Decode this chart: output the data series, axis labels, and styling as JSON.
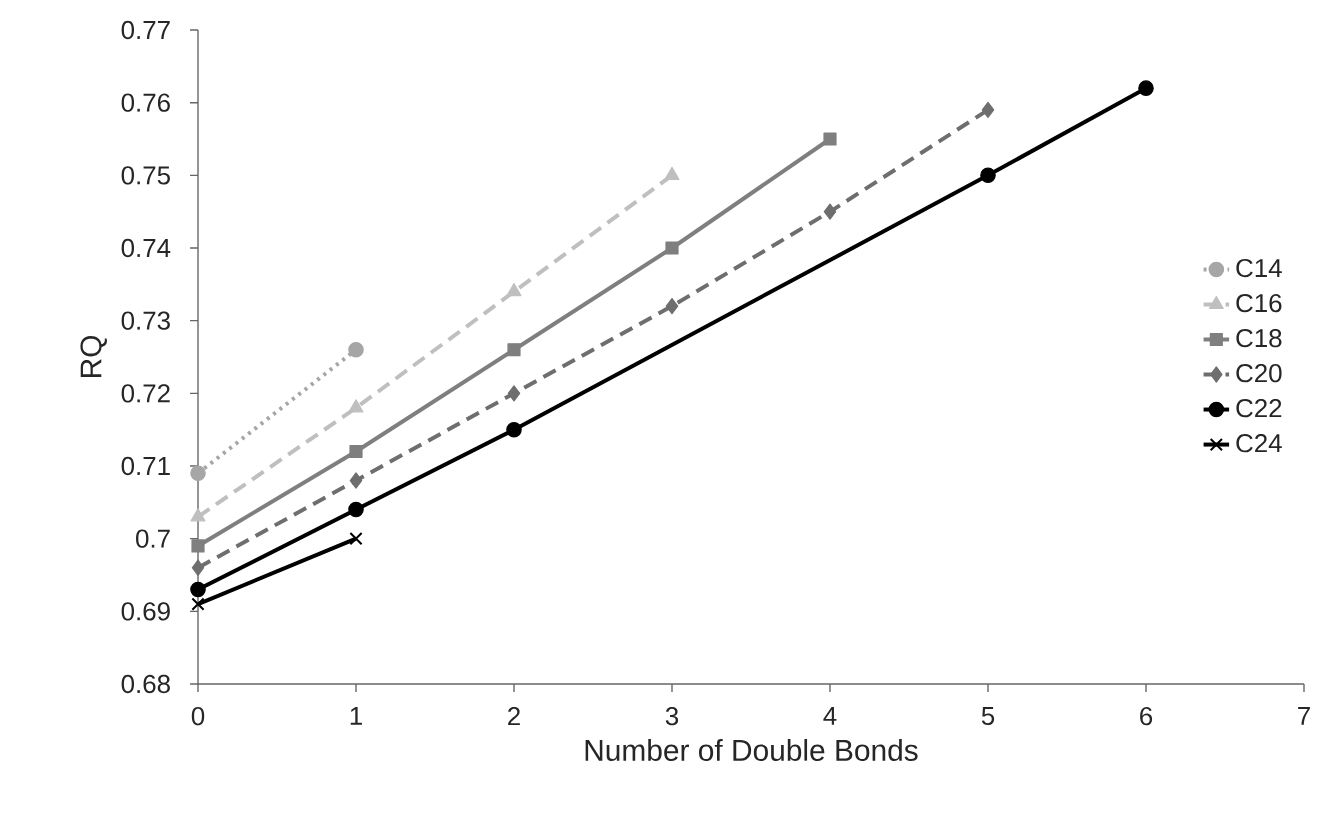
{
  "chart_data": {
    "type": "line",
    "xlabel": "Number of Double Bonds",
    "ylabel": "RQ",
    "xlim": [
      0,
      7
    ],
    "xticks": [
      0,
      1,
      2,
      3,
      4,
      5,
      6,
      7
    ],
    "ylim": [
      0.68,
      0.77
    ],
    "yticks": [
      0.68,
      0.69,
      0.7,
      0.71,
      0.72,
      0.73,
      0.74,
      0.75,
      0.76,
      0.77
    ],
    "grid": false,
    "legend": "right",
    "series": [
      {
        "name": "C14",
        "color": "#a6a6a6",
        "marker": "circle",
        "line_style": "dotted",
        "x": [
          0,
          1
        ],
        "values": [
          0.709,
          0.726
        ]
      },
      {
        "name": "C16",
        "color": "#bfbfbf",
        "marker": "triangle",
        "line_style": "dashed",
        "x": [
          0,
          1,
          2,
          3
        ],
        "values": [
          0.703,
          0.718,
          0.734,
          0.75
        ]
      },
      {
        "name": "C18",
        "color": "#7f7f7f",
        "marker": "square",
        "line_style": "solid",
        "x": [
          0,
          1,
          2,
          3,
          4
        ],
        "values": [
          0.699,
          0.712,
          0.726,
          0.74,
          0.755
        ]
      },
      {
        "name": "C20",
        "color": "#6e6e6e",
        "marker": "diamond",
        "line_style": "dashed",
        "x": [
          0,
          1,
          2,
          3,
          4,
          5
        ],
        "values": [
          0.696,
          0.708,
          0.72,
          0.732,
          0.745,
          0.759
        ]
      },
      {
        "name": "C22",
        "color": "#000000",
        "marker": "circle",
        "line_style": "solid",
        "x": [
          0,
          1,
          2,
          5,
          6
        ],
        "values": [
          0.693,
          0.704,
          0.715,
          0.75,
          0.762
        ]
      },
      {
        "name": "C24",
        "color": "#000000",
        "marker": "cross",
        "line_style": "solid",
        "x": [
          0,
          1
        ],
        "values": [
          0.691,
          0.7
        ]
      }
    ]
  }
}
